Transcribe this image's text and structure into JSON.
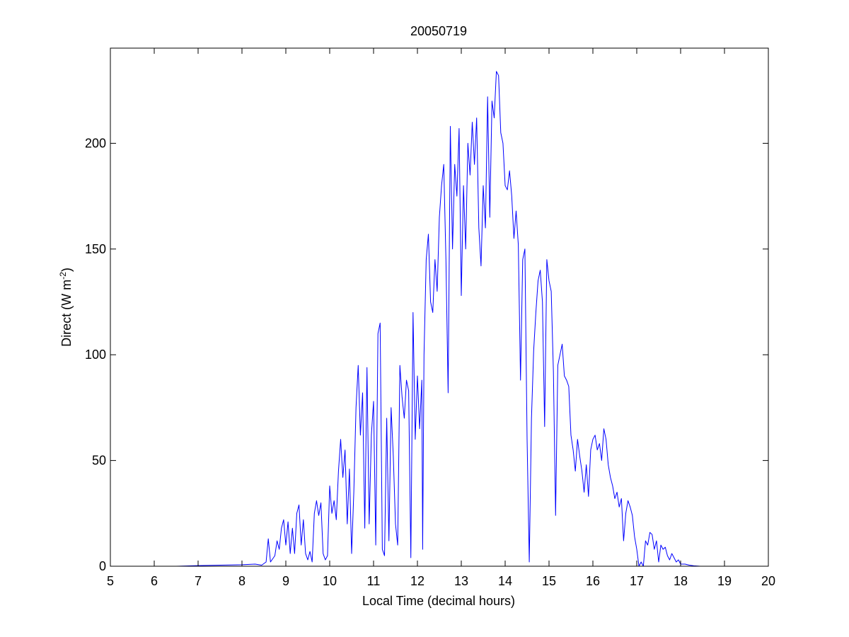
{
  "colors": {
    "background": "#ffffff",
    "axes": "#000000",
    "series": "#0000ff"
  },
  "chart_data": {
    "type": "line",
    "title": "20050719",
    "xlabel": "Local Time (decimal hours)",
    "ylabel_main": "Direct (W m",
    "ylabel_exponent": "-2",
    "ylabel_close": ")",
    "xlim": [
      5,
      20
    ],
    "ylim": [
      0,
      245
    ],
    "xticks": [
      5,
      6,
      7,
      8,
      9,
      10,
      11,
      12,
      13,
      14,
      15,
      16,
      17,
      18,
      19,
      20
    ],
    "yticks": [
      0,
      50,
      100,
      150,
      200
    ],
    "grid": false,
    "legend": "none",
    "series": [
      {
        "points": [
          [
            5.75,
            0
          ],
          [
            6.0,
            0
          ],
          [
            6.5,
            0
          ],
          [
            7.0,
            0.3
          ],
          [
            7.5,
            0.5
          ],
          [
            8.0,
            0.7
          ],
          [
            8.3,
            1
          ],
          [
            8.45,
            0.5
          ],
          [
            8.55,
            2
          ],
          [
            8.6,
            13
          ],
          [
            8.65,
            2
          ],
          [
            8.75,
            5
          ],
          [
            8.8,
            12
          ],
          [
            8.85,
            8
          ],
          [
            8.9,
            18
          ],
          [
            8.95,
            22
          ],
          [
            9.0,
            10
          ],
          [
            9.05,
            21
          ],
          [
            9.1,
            6
          ],
          [
            9.15,
            18
          ],
          [
            9.2,
            6
          ],
          [
            9.25,
            25
          ],
          [
            9.3,
            29
          ],
          [
            9.35,
            10
          ],
          [
            9.4,
            22
          ],
          [
            9.45,
            6
          ],
          [
            9.5,
            3
          ],
          [
            9.55,
            7
          ],
          [
            9.6,
            2
          ],
          [
            9.65,
            25
          ],
          [
            9.7,
            31
          ],
          [
            9.75,
            24
          ],
          [
            9.8,
            30
          ],
          [
            9.85,
            6
          ],
          [
            9.9,
            3
          ],
          [
            9.95,
            5
          ],
          [
            10.0,
            38
          ],
          [
            10.05,
            25
          ],
          [
            10.1,
            31
          ],
          [
            10.15,
            22
          ],
          [
            10.2,
            45
          ],
          [
            10.25,
            60
          ],
          [
            10.3,
            42
          ],
          [
            10.35,
            55
          ],
          [
            10.4,
            20
          ],
          [
            10.45,
            46
          ],
          [
            10.5,
            6
          ],
          [
            10.55,
            35
          ],
          [
            10.6,
            75
          ],
          [
            10.65,
            95
          ],
          [
            10.7,
            62
          ],
          [
            10.75,
            82
          ],
          [
            10.8,
            18
          ],
          [
            10.85,
            94
          ],
          [
            10.9,
            20
          ],
          [
            10.95,
            62
          ],
          [
            11.0,
            78
          ],
          [
            11.05,
            10
          ],
          [
            11.1,
            110
          ],
          [
            11.15,
            115
          ],
          [
            11.2,
            8
          ],
          [
            11.25,
            5
          ],
          [
            11.3,
            70
          ],
          [
            11.35,
            12
          ],
          [
            11.4,
            75
          ],
          [
            11.45,
            52
          ],
          [
            11.5,
            20
          ],
          [
            11.55,
            10
          ],
          [
            11.6,
            95
          ],
          [
            11.65,
            80
          ],
          [
            11.7,
            70
          ],
          [
            11.75,
            88
          ],
          [
            11.8,
            83
          ],
          [
            11.85,
            4
          ],
          [
            11.9,
            120
          ],
          [
            11.95,
            60
          ],
          [
            12.0,
            90
          ],
          [
            12.05,
            65
          ],
          [
            12.1,
            88
          ],
          [
            12.12,
            8
          ],
          [
            12.15,
            100
          ],
          [
            12.2,
            145
          ],
          [
            12.25,
            157
          ],
          [
            12.3,
            125
          ],
          [
            12.35,
            120
          ],
          [
            12.4,
            145
          ],
          [
            12.45,
            130
          ],
          [
            12.5,
            165
          ],
          [
            12.55,
            180
          ],
          [
            12.6,
            190
          ],
          [
            12.65,
            145
          ],
          [
            12.7,
            82
          ],
          [
            12.75,
            208
          ],
          [
            12.8,
            150
          ],
          [
            12.85,
            190
          ],
          [
            12.9,
            175
          ],
          [
            12.95,
            207
          ],
          [
            13.0,
            128
          ],
          [
            13.05,
            180
          ],
          [
            13.1,
            150
          ],
          [
            13.15,
            200
          ],
          [
            13.2,
            185
          ],
          [
            13.25,
            210
          ],
          [
            13.3,
            190
          ],
          [
            13.35,
            212
          ],
          [
            13.4,
            160
          ],
          [
            13.45,
            142
          ],
          [
            13.5,
            180
          ],
          [
            13.55,
            160
          ],
          [
            13.6,
            222
          ],
          [
            13.65,
            165
          ],
          [
            13.7,
            220
          ],
          [
            13.75,
            212
          ],
          [
            13.8,
            234
          ],
          [
            13.85,
            232
          ],
          [
            13.9,
            205
          ],
          [
            13.95,
            200
          ],
          [
            14.0,
            180
          ],
          [
            14.05,
            178
          ],
          [
            14.1,
            187
          ],
          [
            14.15,
            175
          ],
          [
            14.2,
            155
          ],
          [
            14.25,
            168
          ],
          [
            14.3,
            152
          ],
          [
            14.35,
            88
          ],
          [
            14.4,
            145
          ],
          [
            14.45,
            150
          ],
          [
            14.5,
            60
          ],
          [
            14.55,
            2
          ],
          [
            14.6,
            70
          ],
          [
            14.65,
            102
          ],
          [
            14.7,
            120
          ],
          [
            14.75,
            135
          ],
          [
            14.8,
            140
          ],
          [
            14.85,
            125
          ],
          [
            14.9,
            66
          ],
          [
            14.95,
            145
          ],
          [
            15.0,
            135
          ],
          [
            15.05,
            130
          ],
          [
            15.1,
            92
          ],
          [
            15.15,
            24
          ],
          [
            15.2,
            95
          ],
          [
            15.25,
            100
          ],
          [
            15.3,
            105
          ],
          [
            15.35,
            90
          ],
          [
            15.4,
            88
          ],
          [
            15.45,
            85
          ],
          [
            15.5,
            62
          ],
          [
            15.55,
            55
          ],
          [
            15.6,
            45
          ],
          [
            15.65,
            60
          ],
          [
            15.7,
            52
          ],
          [
            15.75,
            45
          ],
          [
            15.8,
            35
          ],
          [
            15.85,
            48
          ],
          [
            15.9,
            33
          ],
          [
            15.95,
            55
          ],
          [
            16.0,
            60
          ],
          [
            16.05,
            62
          ],
          [
            16.1,
            55
          ],
          [
            16.15,
            58
          ],
          [
            16.2,
            50
          ],
          [
            16.25,
            65
          ],
          [
            16.3,
            60
          ],
          [
            16.35,
            48
          ],
          [
            16.4,
            42
          ],
          [
            16.45,
            38
          ],
          [
            16.5,
            32
          ],
          [
            16.55,
            35
          ],
          [
            16.6,
            28
          ],
          [
            16.65,
            32
          ],
          [
            16.7,
            12
          ],
          [
            16.75,
            25
          ],
          [
            16.8,
            31
          ],
          [
            16.85,
            28
          ],
          [
            16.9,
            24
          ],
          [
            16.95,
            14
          ],
          [
            17.0,
            8
          ],
          [
            17.05,
            0
          ],
          [
            17.1,
            2
          ],
          [
            17.15,
            0
          ],
          [
            17.2,
            12
          ],
          [
            17.25,
            10
          ],
          [
            17.3,
            16
          ],
          [
            17.35,
            15
          ],
          [
            17.4,
            8
          ],
          [
            17.45,
            12
          ],
          [
            17.5,
            2
          ],
          [
            17.55,
            10
          ],
          [
            17.6,
            8
          ],
          [
            17.65,
            9
          ],
          [
            17.7,
            5
          ],
          [
            17.75,
            3
          ],
          [
            17.8,
            6
          ],
          [
            17.85,
            4
          ],
          [
            17.9,
            2
          ],
          [
            17.95,
            3
          ],
          [
            18.0,
            1
          ],
          [
            18.1,
            1
          ],
          [
            18.2,
            0.5
          ],
          [
            18.3,
            0.2
          ],
          [
            18.45,
            0
          ],
          [
            18.7,
            0
          ]
        ]
      }
    ]
  }
}
